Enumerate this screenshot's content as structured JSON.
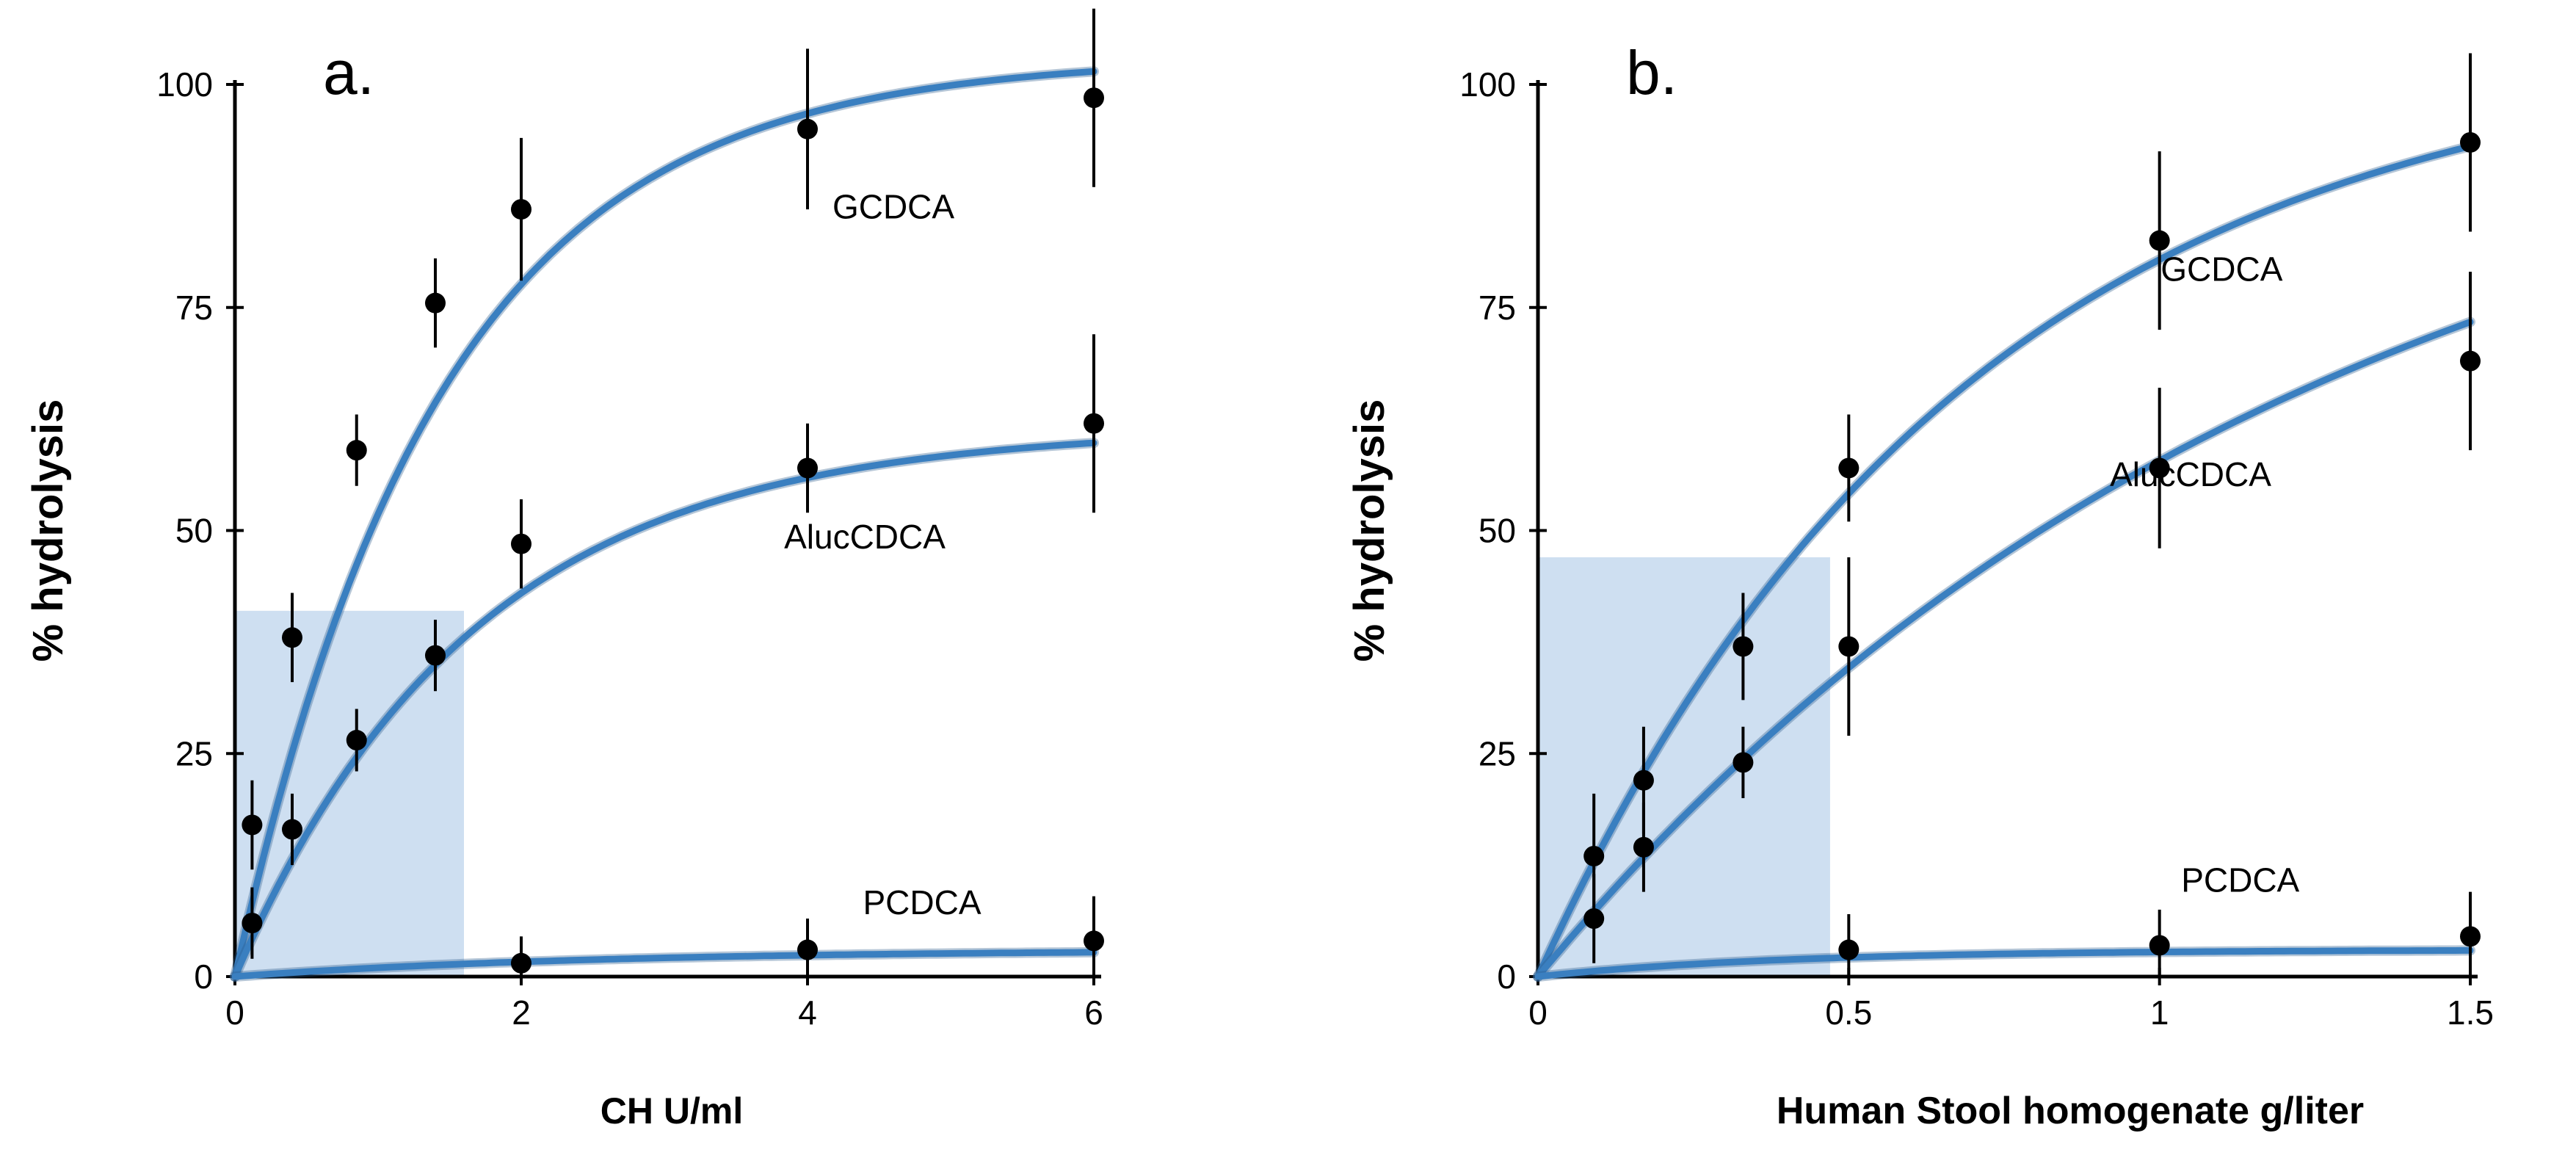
{
  "chart_data": [
    {
      "type": "scatter",
      "panel_label": "a.",
      "xlabel": "CH U/ml",
      "ylabel": "% hydrolysis",
      "xlim": [
        0,
        6
      ],
      "ylim": [
        0,
        100
      ],
      "x_ticks": [
        0,
        2,
        4,
        6
      ],
      "x_tick_labels": [
        "0",
        "2",
        "4",
        "6"
      ],
      "y_ticks": [
        0,
        25,
        50,
        75,
        100
      ],
      "y_tick_labels": [
        "0",
        "25",
        "50",
        "75",
        "100"
      ],
      "shaded_region": {
        "x": [
          0,
          1.6
        ],
        "y": [
          0,
          41
        ]
      },
      "fit_lines": true,
      "series": [
        {
          "name": "GCDCA",
          "label_at": [
            4.6,
            85
          ],
          "x": [
            0.12,
            0.4,
            0.85,
            1.4,
            2.0,
            4.0,
            6.0
          ],
          "y": [
            17,
            38,
            59,
            75.5,
            86,
            95,
            98.5
          ],
          "err": [
            5,
            5,
            4,
            5,
            8,
            9,
            10
          ],
          "fit": {
            "max": 103,
            "k": 0.7
          }
        },
        {
          "name": "AlucCDCA",
          "label_at": [
            4.4,
            48
          ],
          "x": [
            0.12,
            0.4,
            0.85,
            1.4,
            2.0,
            4.0,
            6.0
          ],
          "y": [
            6,
            16.5,
            26.5,
            36,
            48.5,
            57,
            62
          ],
          "err": [
            4,
            4,
            3.5,
            4,
            5,
            5,
            10
          ],
          "fit": {
            "max": 61.5,
            "k": 0.6
          }
        },
        {
          "name": "PCDCA",
          "label_at": [
            4.8,
            7
          ],
          "x": [
            2.0,
            4.0,
            6.0
          ],
          "y": [
            1.5,
            3,
            4
          ],
          "err": [
            3,
            3.5,
            5
          ],
          "fit": {
            "max": 3,
            "k": 0.4
          }
        }
      ]
    },
    {
      "type": "scatter",
      "panel_label": "b.",
      "xlabel": "Human Stool homogenate g/liter",
      "ylabel": "% hydrolysis",
      "xlim": [
        0,
        1.5
      ],
      "ylim": [
        0,
        100
      ],
      "x_ticks": [
        0,
        0.5,
        1,
        1.5
      ],
      "x_tick_labels": [
        "0",
        "0.5",
        "1",
        "1.5"
      ],
      "y_ticks": [
        0,
        25,
        50,
        75,
        100
      ],
      "y_tick_labels": [
        "0",
        "25",
        "50",
        "75",
        "100"
      ],
      "shaded_region": {
        "x": [
          0,
          0.47
        ],
        "y": [
          0,
          47
        ]
      },
      "fit_lines": true,
      "series": [
        {
          "name": "GCDCA",
          "label_at": [
            1.1,
            78
          ],
          "x": [
            0.09,
            0.17,
            0.33,
            0.5,
            1.0,
            1.5
          ],
          "y": [
            13.5,
            22,
            37,
            57,
            82.5,
            93.5
          ],
          "err": [
            7,
            6,
            6,
            6,
            10,
            10
          ],
          "fit": {
            "max": 105,
            "k": 1.45
          }
        },
        {
          "name": "AlucCDCA",
          "label_at": [
            1.05,
            55
          ],
          "x": [
            0.09,
            0.17,
            0.33,
            0.5,
            1.0,
            1.5
          ],
          "y": [
            6.5,
            14.5,
            24,
            37,
            57,
            69
          ],
          "err": [
            5,
            5,
            4,
            10,
            9,
            10
          ],
          "fit": {
            "max": 105,
            "k": 0.8
          }
        },
        {
          "name": "PCDCA",
          "label_at": [
            1.13,
            9.5
          ],
          "x": [
            0.5,
            1.0,
            1.5
          ],
          "y": [
            3,
            3.5,
            4.5
          ],
          "err": [
            4,
            4,
            5
          ],
          "fit": {
            "max": 3,
            "k": 2.5
          }
        }
      ]
    }
  ],
  "colors": {
    "fit_line": "#3a7fc0",
    "shade": "#c9dcef",
    "point": "#000000",
    "axis": "#000000"
  }
}
